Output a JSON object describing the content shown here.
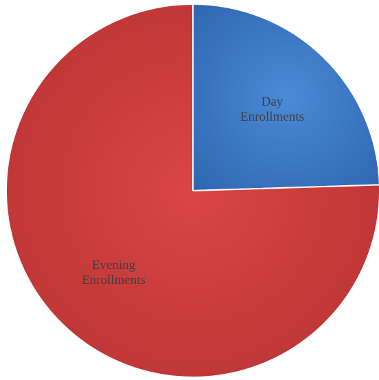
{
  "chart_data": {
    "type": "pie",
    "title": "",
    "slices": [
      {
        "name": "Day Enrollments",
        "label_lines": [
          "Day",
          "Enrollments"
        ],
        "value": 24.5,
        "color": "#3b78c7"
      },
      {
        "name": "Evening Enrollments",
        "label_lines": [
          "Evening",
          "Enrollments"
        ],
        "value": 75.5,
        "color": "#cf3b3b"
      }
    ],
    "start_angle_deg": 0,
    "direction": "clockwise",
    "legend": "none",
    "data_labels": "inside"
  }
}
